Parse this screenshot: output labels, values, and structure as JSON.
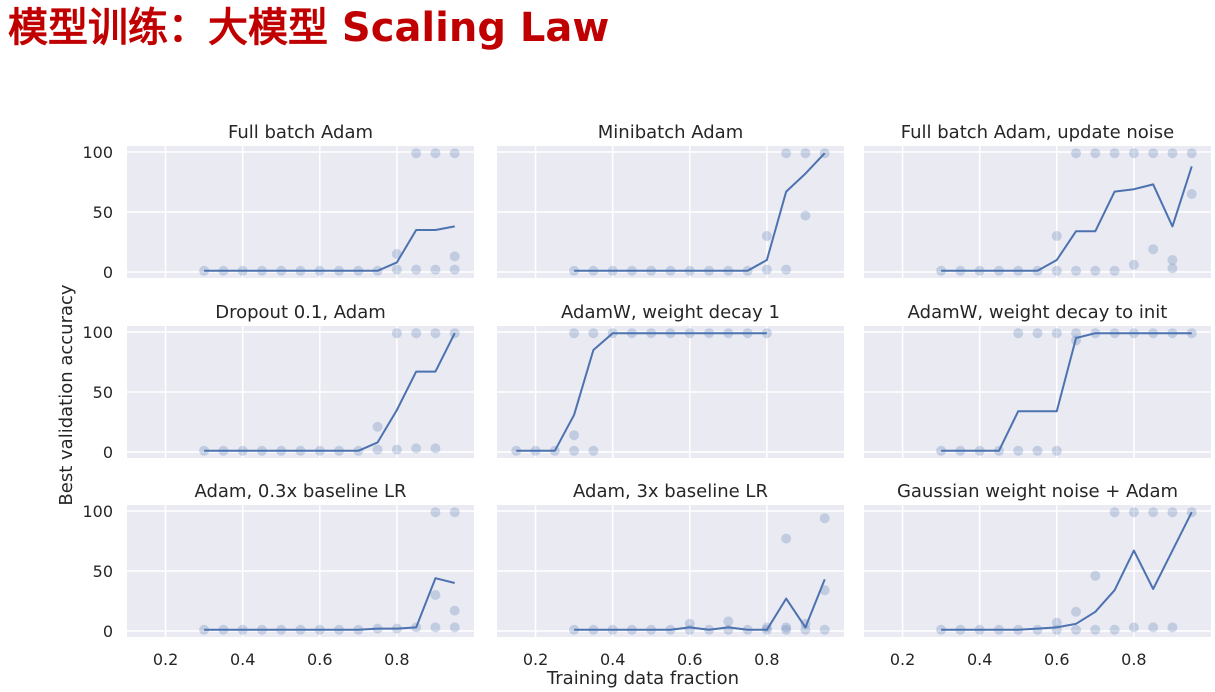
{
  "page": {
    "title": "模型训练：大模型 Scaling Law"
  },
  "chart_data": {
    "type": "scatter",
    "layout": "3x3 grid of line + scatter subplots, shared axes",
    "xlabel": "Training data fraction",
    "ylabel": "Best validation accuracy",
    "xticks": [
      0.2,
      0.4,
      0.6,
      0.8
    ],
    "yticks": [
      0,
      50,
      100
    ],
    "xlim": [
      0.1,
      1.0
    ],
    "ylim": [
      -5,
      105
    ],
    "grid": true,
    "colors": {
      "series": "#4c72b0",
      "panel_bg": "#eaeaf2",
      "grid": "#ffffff"
    },
    "panels": [
      {
        "title": "Full batch Adam",
        "line": [
          [
            0.3,
            1
          ],
          [
            0.35,
            1
          ],
          [
            0.4,
            1
          ],
          [
            0.45,
            1
          ],
          [
            0.5,
            1
          ],
          [
            0.55,
            1
          ],
          [
            0.6,
            1
          ],
          [
            0.65,
            1
          ],
          [
            0.7,
            1
          ],
          [
            0.75,
            1
          ],
          [
            0.8,
            8
          ],
          [
            0.85,
            35
          ],
          [
            0.9,
            35
          ],
          [
            0.95,
            38
          ]
        ],
        "points": [
          [
            0.3,
            1
          ],
          [
            0.35,
            1
          ],
          [
            0.4,
            1
          ],
          [
            0.45,
            1
          ],
          [
            0.5,
            1
          ],
          [
            0.55,
            1
          ],
          [
            0.6,
            1
          ],
          [
            0.65,
            1
          ],
          [
            0.7,
            1
          ],
          [
            0.75,
            1
          ],
          [
            0.8,
            2
          ],
          [
            0.8,
            15
          ],
          [
            0.85,
            2
          ],
          [
            0.85,
            99
          ],
          [
            0.9,
            2
          ],
          [
            0.9,
            99
          ],
          [
            0.95,
            2
          ],
          [
            0.95,
            13
          ],
          [
            0.95,
            99
          ]
        ]
      },
      {
        "title": "Minibatch Adam",
        "line": [
          [
            0.3,
            1
          ],
          [
            0.35,
            1
          ],
          [
            0.4,
            1
          ],
          [
            0.45,
            1
          ],
          [
            0.5,
            1
          ],
          [
            0.55,
            1
          ],
          [
            0.6,
            1
          ],
          [
            0.65,
            1
          ],
          [
            0.7,
            1
          ],
          [
            0.75,
            1
          ],
          [
            0.8,
            10
          ],
          [
            0.85,
            67
          ],
          [
            0.9,
            82
          ],
          [
            0.95,
            99
          ]
        ],
        "points": [
          [
            0.3,
            1
          ],
          [
            0.35,
            1
          ],
          [
            0.4,
            1
          ],
          [
            0.45,
            1
          ],
          [
            0.5,
            1
          ],
          [
            0.55,
            1
          ],
          [
            0.6,
            1
          ],
          [
            0.65,
            1
          ],
          [
            0.7,
            1
          ],
          [
            0.75,
            1
          ],
          [
            0.8,
            2
          ],
          [
            0.8,
            30
          ],
          [
            0.85,
            2
          ],
          [
            0.85,
            99
          ],
          [
            0.9,
            47
          ],
          [
            0.9,
            99
          ],
          [
            0.95,
            99
          ]
        ]
      },
      {
        "title": "Full batch Adam, update noise",
        "line": [
          [
            0.3,
            1
          ],
          [
            0.35,
            1
          ],
          [
            0.4,
            1
          ],
          [
            0.45,
            1
          ],
          [
            0.5,
            1
          ],
          [
            0.55,
            1
          ],
          [
            0.6,
            10
          ],
          [
            0.65,
            34
          ],
          [
            0.7,
            34
          ],
          [
            0.75,
            67
          ],
          [
            0.8,
            69
          ],
          [
            0.85,
            73
          ],
          [
            0.9,
            38
          ],
          [
            0.95,
            88
          ]
        ],
        "points": [
          [
            0.3,
            1
          ],
          [
            0.35,
            1
          ],
          [
            0.4,
            1
          ],
          [
            0.45,
            1
          ],
          [
            0.5,
            1
          ],
          [
            0.55,
            1
          ],
          [
            0.6,
            1
          ],
          [
            0.6,
            30
          ],
          [
            0.65,
            1
          ],
          [
            0.65,
            99
          ],
          [
            0.7,
            1
          ],
          [
            0.7,
            99
          ],
          [
            0.75,
            1
          ],
          [
            0.75,
            99
          ],
          [
            0.8,
            6
          ],
          [
            0.8,
            99
          ],
          [
            0.85,
            19
          ],
          [
            0.85,
            99
          ],
          [
            0.9,
            3
          ],
          [
            0.9,
            10
          ],
          [
            0.9,
            99
          ],
          [
            0.95,
            65
          ],
          [
            0.95,
            99
          ]
        ]
      },
      {
        "title": "Dropout 0.1, Adam",
        "line": [
          [
            0.3,
            1
          ],
          [
            0.35,
            1
          ],
          [
            0.4,
            1
          ],
          [
            0.45,
            1
          ],
          [
            0.5,
            1
          ],
          [
            0.55,
            1
          ],
          [
            0.6,
            1
          ],
          [
            0.65,
            1
          ],
          [
            0.7,
            1
          ],
          [
            0.75,
            8
          ],
          [
            0.8,
            35
          ],
          [
            0.85,
            67
          ],
          [
            0.9,
            67
          ],
          [
            0.95,
            99
          ]
        ],
        "points": [
          [
            0.3,
            1
          ],
          [
            0.35,
            1
          ],
          [
            0.4,
            1
          ],
          [
            0.45,
            1
          ],
          [
            0.5,
            1
          ],
          [
            0.55,
            1
          ],
          [
            0.6,
            1
          ],
          [
            0.65,
            1
          ],
          [
            0.7,
            1
          ],
          [
            0.75,
            2
          ],
          [
            0.75,
            21
          ],
          [
            0.8,
            2
          ],
          [
            0.8,
            99
          ],
          [
            0.85,
            3
          ],
          [
            0.85,
            99
          ],
          [
            0.9,
            3
          ],
          [
            0.9,
            99
          ],
          [
            0.95,
            99
          ]
        ]
      },
      {
        "title": "AdamW, weight decay 1",
        "line": [
          [
            0.15,
            1
          ],
          [
            0.2,
            1
          ],
          [
            0.25,
            1
          ],
          [
            0.3,
            31
          ],
          [
            0.35,
            85
          ],
          [
            0.4,
            99
          ],
          [
            0.45,
            99
          ],
          [
            0.5,
            99
          ],
          [
            0.55,
            99
          ],
          [
            0.6,
            99
          ],
          [
            0.65,
            99
          ],
          [
            0.7,
            99
          ],
          [
            0.75,
            99
          ],
          [
            0.8,
            99
          ]
        ],
        "points": [
          [
            0.15,
            1
          ],
          [
            0.2,
            1
          ],
          [
            0.25,
            1
          ],
          [
            0.3,
            1
          ],
          [
            0.3,
            14
          ],
          [
            0.3,
            99
          ],
          [
            0.35,
            1
          ],
          [
            0.35,
            99
          ],
          [
            0.4,
            99
          ],
          [
            0.45,
            99
          ],
          [
            0.5,
            99
          ],
          [
            0.55,
            99
          ],
          [
            0.6,
            99
          ],
          [
            0.65,
            99
          ],
          [
            0.7,
            99
          ],
          [
            0.75,
            99
          ],
          [
            0.8,
            99
          ]
        ]
      },
      {
        "title": "AdamW, weight decay to init",
        "line": [
          [
            0.3,
            1
          ],
          [
            0.35,
            1
          ],
          [
            0.4,
            1
          ],
          [
            0.45,
            1
          ],
          [
            0.5,
            34
          ],
          [
            0.55,
            34
          ],
          [
            0.6,
            34
          ],
          [
            0.65,
            95
          ],
          [
            0.7,
            99
          ],
          [
            0.75,
            99
          ],
          [
            0.8,
            99
          ],
          [
            0.85,
            99
          ],
          [
            0.9,
            99
          ],
          [
            0.95,
            99
          ]
        ],
        "points": [
          [
            0.3,
            1
          ],
          [
            0.35,
            1
          ],
          [
            0.4,
            1
          ],
          [
            0.45,
            1
          ],
          [
            0.5,
            1
          ],
          [
            0.5,
            99
          ],
          [
            0.55,
            1
          ],
          [
            0.55,
            99
          ],
          [
            0.6,
            1
          ],
          [
            0.6,
            99
          ],
          [
            0.65,
            93
          ],
          [
            0.65,
            99
          ],
          [
            0.7,
            99
          ],
          [
            0.75,
            99
          ],
          [
            0.8,
            99
          ],
          [
            0.85,
            99
          ],
          [
            0.9,
            99
          ],
          [
            0.95,
            99
          ]
        ]
      },
      {
        "title": "Adam, 0.3x baseline LR",
        "line": [
          [
            0.3,
            1
          ],
          [
            0.35,
            1
          ],
          [
            0.4,
            1
          ],
          [
            0.45,
            1
          ],
          [
            0.5,
            1
          ],
          [
            0.55,
            1
          ],
          [
            0.6,
            1
          ],
          [
            0.65,
            1
          ],
          [
            0.7,
            1
          ],
          [
            0.75,
            2
          ],
          [
            0.8,
            2
          ],
          [
            0.85,
            3
          ],
          [
            0.9,
            44
          ],
          [
            0.95,
            40
          ]
        ],
        "points": [
          [
            0.3,
            1
          ],
          [
            0.35,
            1
          ],
          [
            0.4,
            1
          ],
          [
            0.45,
            1
          ],
          [
            0.5,
            1
          ],
          [
            0.55,
            1
          ],
          [
            0.6,
            1
          ],
          [
            0.65,
            1
          ],
          [
            0.7,
            1
          ],
          [
            0.75,
            2
          ],
          [
            0.8,
            2
          ],
          [
            0.85,
            3
          ],
          [
            0.9,
            3
          ],
          [
            0.9,
            30
          ],
          [
            0.9,
            99
          ],
          [
            0.95,
            3
          ],
          [
            0.95,
            17
          ],
          [
            0.95,
            99
          ]
        ]
      },
      {
        "title": "Adam, 3x baseline LR",
        "line": [
          [
            0.3,
            1
          ],
          [
            0.35,
            1
          ],
          [
            0.4,
            1
          ],
          [
            0.45,
            1
          ],
          [
            0.5,
            1
          ],
          [
            0.55,
            1
          ],
          [
            0.6,
            3
          ],
          [
            0.65,
            1
          ],
          [
            0.7,
            3
          ],
          [
            0.75,
            1
          ],
          [
            0.8,
            1
          ],
          [
            0.85,
            27
          ],
          [
            0.9,
            3
          ],
          [
            0.95,
            43
          ]
        ],
        "points": [
          [
            0.3,
            1
          ],
          [
            0.35,
            1
          ],
          [
            0.4,
            1
          ],
          [
            0.45,
            1
          ],
          [
            0.5,
            1
          ],
          [
            0.55,
            1
          ],
          [
            0.6,
            1
          ],
          [
            0.6,
            6
          ],
          [
            0.65,
            1
          ],
          [
            0.7,
            1
          ],
          [
            0.7,
            8
          ],
          [
            0.75,
            1
          ],
          [
            0.8,
            1
          ],
          [
            0.8,
            3
          ],
          [
            0.85,
            1
          ],
          [
            0.85,
            3
          ],
          [
            0.85,
            77
          ],
          [
            0.9,
            1
          ],
          [
            0.9,
            6
          ],
          [
            0.95,
            1
          ],
          [
            0.95,
            34
          ],
          [
            0.95,
            94
          ]
        ]
      },
      {
        "title": "Gaussian weight noise + Adam",
        "line": [
          [
            0.3,
            1
          ],
          [
            0.35,
            1
          ],
          [
            0.4,
            1
          ],
          [
            0.45,
            1
          ],
          [
            0.5,
            1
          ],
          [
            0.55,
            2
          ],
          [
            0.6,
            3
          ],
          [
            0.65,
            6
          ],
          [
            0.7,
            16
          ],
          [
            0.75,
            34
          ],
          [
            0.8,
            67
          ],
          [
            0.85,
            35
          ],
          [
            0.9,
            67
          ],
          [
            0.95,
            99
          ]
        ],
        "points": [
          [
            0.3,
            1
          ],
          [
            0.35,
            1
          ],
          [
            0.4,
            1
          ],
          [
            0.45,
            1
          ],
          [
            0.5,
            1
          ],
          [
            0.55,
            1
          ],
          [
            0.6,
            1
          ],
          [
            0.6,
            7
          ],
          [
            0.65,
            1
          ],
          [
            0.65,
            16
          ],
          [
            0.7,
            1
          ],
          [
            0.7,
            46
          ],
          [
            0.75,
            1
          ],
          [
            0.75,
            99
          ],
          [
            0.8,
            3
          ],
          [
            0.8,
            99
          ],
          [
            0.85,
            3
          ],
          [
            0.85,
            99
          ],
          [
            0.9,
            3
          ],
          [
            0.9,
            99
          ],
          [
            0.95,
            99
          ]
        ]
      }
    ]
  }
}
